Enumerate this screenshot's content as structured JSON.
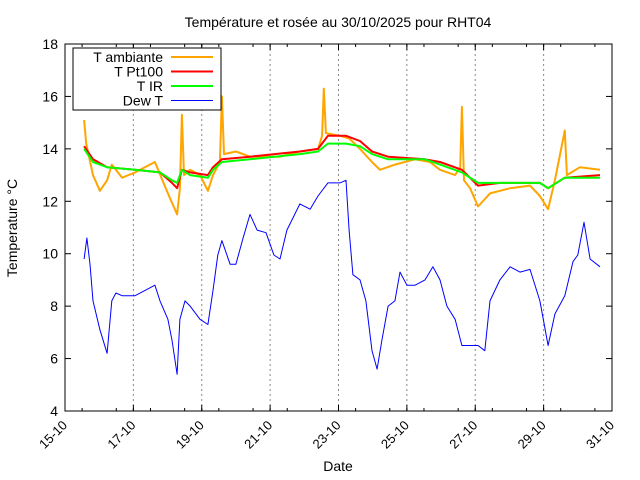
{
  "chart_data": {
    "type": "line",
    "title": "Température et rosée au 30/10/2025 pour RHT04",
    "xlabel": "Date",
    "ylabel": "Temperature °C",
    "xlim": [
      15,
      31
    ],
    "ylim": [
      4,
      18
    ],
    "grid": "vertical dashed at major x ticks",
    "legend_placement": "top-left",
    "x_ticks": [
      {
        "value": 15,
        "label": "15-10"
      },
      {
        "value": 17,
        "label": "17-10"
      },
      {
        "value": 19,
        "label": "19-10"
      },
      {
        "value": 21,
        "label": "21-10"
      },
      {
        "value": 23,
        "label": "23-10"
      },
      {
        "value": 25,
        "label": "25-10"
      },
      {
        "value": 27,
        "label": "27-10"
      },
      {
        "value": 29,
        "label": "29-10"
      },
      {
        "value": 31,
        "label": "31-10"
      }
    ],
    "y_ticks": [
      {
        "value": 4,
        "label": "4"
      },
      {
        "value": 6,
        "label": "6"
      },
      {
        "value": 8,
        "label": "8"
      },
      {
        "value": 10,
        "label": "10"
      },
      {
        "value": 12,
        "label": "12"
      },
      {
        "value": 14,
        "label": "14"
      },
      {
        "value": 16,
        "label": "16"
      },
      {
        "value": 18,
        "label": "18"
      }
    ],
    "series": [
      {
        "name": "T ambiante",
        "color": "#ffa500",
        "x": [
          15.56,
          15.62,
          15.82,
          16.02,
          16.23,
          16.37,
          16.67,
          17.05,
          17.63,
          18.01,
          18.28,
          18.36,
          18.42,
          18.48,
          18.66,
          18.95,
          19.18,
          19.33,
          19.53,
          19.59,
          19.65,
          20.0,
          20.41,
          21.29,
          21.87,
          22.4,
          22.52,
          22.57,
          22.63,
          23.04,
          23.31,
          23.63,
          23.98,
          24.21,
          24.65,
          25.24,
          25.67,
          25.97,
          26.41,
          26.56,
          26.61,
          26.67,
          26.85,
          27.08,
          27.43,
          28.02,
          28.6,
          28.89,
          29.13,
          29.33,
          29.62,
          29.68,
          30.06,
          30.65
        ],
        "y": [
          15.1,
          14.2,
          13.0,
          12.4,
          12.8,
          13.4,
          12.9,
          13.1,
          13.5,
          12.3,
          11.5,
          12.5,
          15.3,
          13.0,
          13.2,
          13.0,
          12.4,
          13.0,
          13.5,
          16.0,
          13.8,
          13.9,
          13.7,
          13.7,
          13.9,
          14.0,
          14.5,
          16.3,
          14.6,
          14.5,
          14.4,
          14.0,
          13.5,
          13.2,
          13.4,
          13.6,
          13.5,
          13.2,
          13.0,
          13.3,
          15.6,
          12.8,
          12.5,
          11.8,
          12.3,
          12.5,
          12.6,
          12.2,
          11.7,
          12.8,
          14.7,
          13.0,
          13.3,
          13.2
        ]
      },
      {
        "name": "T Pt100",
        "color": "#ff0000",
        "x": [
          15.56,
          15.82,
          16.23,
          17.05,
          17.78,
          18.13,
          18.28,
          18.42,
          18.66,
          19.18,
          19.33,
          19.59,
          20.41,
          21.87,
          22.4,
          22.69,
          23.22,
          23.63,
          23.98,
          24.45,
          25.53,
          25.97,
          26.61,
          27.08,
          27.72,
          28.89,
          29.13,
          29.62,
          30.65
        ],
        "y": [
          14.1,
          13.6,
          13.3,
          13.2,
          13.1,
          12.7,
          12.5,
          13.2,
          13.1,
          13.0,
          13.3,
          13.6,
          13.7,
          13.9,
          14.0,
          14.5,
          14.5,
          14.3,
          13.9,
          13.7,
          13.6,
          13.5,
          13.2,
          12.6,
          12.7,
          12.7,
          12.5,
          12.9,
          13.0
        ]
      },
      {
        "name": "T IR",
        "color": "#00ff00",
        "x": [
          15.56,
          15.82,
          16.23,
          17.05,
          17.78,
          18.13,
          18.28,
          18.42,
          18.66,
          19.18,
          19.33,
          19.59,
          20.41,
          21.87,
          22.4,
          22.69,
          23.22,
          23.63,
          23.98,
          24.45,
          25.53,
          25.97,
          26.61,
          27.08,
          27.72,
          28.89,
          29.13,
          29.62,
          30.65
        ],
        "y": [
          14.0,
          13.5,
          13.3,
          13.2,
          13.1,
          12.8,
          12.7,
          13.2,
          13.0,
          12.9,
          13.2,
          13.5,
          13.6,
          13.8,
          13.9,
          14.2,
          14.2,
          14.1,
          13.8,
          13.6,
          13.6,
          13.4,
          13.1,
          12.7,
          12.7,
          12.7,
          12.5,
          12.9,
          12.9
        ]
      },
      {
        "name": "Dew T",
        "color": "#0000ff",
        "x": [
          15.56,
          15.64,
          15.73,
          15.82,
          16.02,
          16.23,
          16.37,
          16.49,
          16.67,
          17.05,
          17.63,
          17.78,
          18.01,
          18.13,
          18.28,
          18.36,
          18.51,
          18.66,
          18.95,
          19.18,
          19.33,
          19.47,
          19.59,
          19.83,
          20.0,
          20.21,
          20.41,
          20.62,
          20.88,
          21.11,
          21.29,
          21.49,
          21.87,
          22.17,
          22.4,
          22.69,
          23.04,
          23.22,
          23.31,
          23.42,
          23.63,
          23.8,
          23.98,
          24.13,
          24.27,
          24.45,
          24.65,
          24.8,
          25.0,
          25.24,
          25.53,
          25.76,
          25.97,
          26.17,
          26.41,
          26.61,
          26.85,
          27.08,
          27.28,
          27.43,
          27.72,
          28.02,
          28.31,
          28.6,
          28.89,
          29.13,
          29.33,
          29.62,
          29.86,
          30.0,
          30.18,
          30.36,
          30.65
        ],
        "y": [
          9.8,
          10.6,
          9.6,
          8.2,
          7.1,
          6.2,
          8.2,
          8.5,
          8.4,
          8.4,
          8.8,
          8.2,
          7.5,
          6.7,
          5.4,
          7.5,
          8.2,
          8.0,
          7.5,
          7.3,
          8.6,
          9.95,
          10.5,
          9.6,
          9.6,
          10.6,
          11.5,
          10.9,
          10.8,
          9.95,
          9.8,
          10.9,
          11.9,
          11.7,
          12.2,
          12.7,
          12.7,
          12.8,
          10.9,
          9.2,
          9.0,
          8.2,
          6.3,
          5.6,
          6.7,
          8.0,
          8.2,
          9.3,
          8.8,
          8.8,
          9.0,
          9.5,
          9.0,
          8.0,
          7.5,
          6.5,
          6.5,
          6.5,
          6.3,
          8.2,
          9.0,
          9.5,
          9.3,
          9.4,
          8.2,
          6.5,
          7.7,
          8.4,
          9.7,
          9.95,
          11.2,
          9.8,
          9.5
        ]
      }
    ]
  }
}
